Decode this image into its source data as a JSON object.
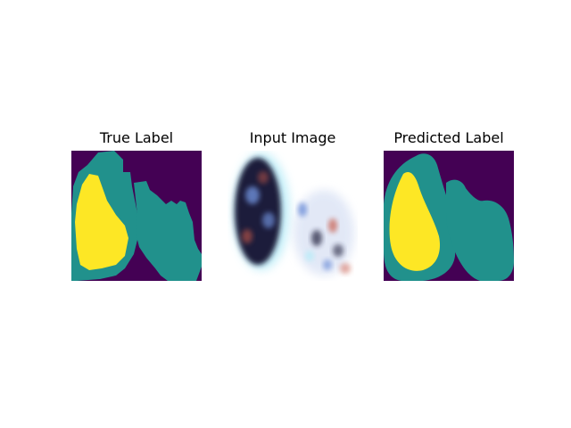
{
  "panels": [
    {
      "title": "True Label"
    },
    {
      "title": "Input Image"
    },
    {
      "title": "Predicted Label"
    }
  ],
  "colors": {
    "background": "#440154",
    "class1": "#21918c",
    "class2": "#fde725",
    "input_dark": "#1a1a3a",
    "input_blue": "#6e8fd8",
    "input_cyan": "#b8ecf8",
    "input_red": "#c85a4a"
  }
}
